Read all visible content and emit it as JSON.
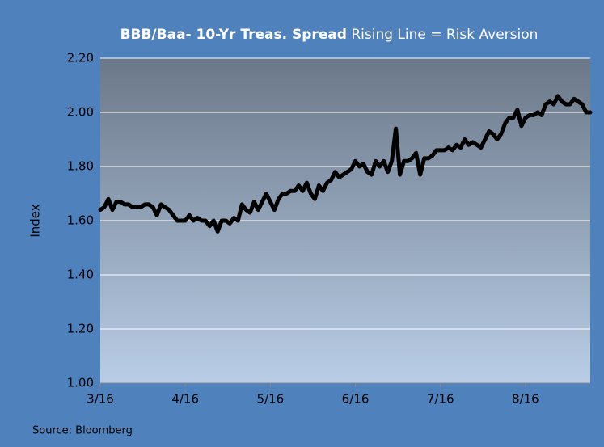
{
  "chart_data": {
    "type": "line",
    "title": "BBB/Baa- 10-Yr Treas. Spread",
    "subtitle": "Rising Line = Risk Aversion",
    "y_label": "Index",
    "source": "Source: Bloomberg",
    "categories": [
      "3/16",
      null,
      null,
      null,
      null,
      null,
      null,
      null,
      null,
      null,
      null,
      null,
      null,
      null,
      null,
      null,
      null,
      null,
      null,
      null,
      null,
      "4/16",
      null,
      null,
      null,
      null,
      null,
      null,
      null,
      null,
      null,
      null,
      null,
      null,
      null,
      null,
      null,
      null,
      null,
      null,
      null,
      null,
      "5/16",
      null,
      null,
      null,
      null,
      null,
      null,
      null,
      null,
      null,
      null,
      null,
      null,
      null,
      null,
      null,
      null,
      null,
      null,
      null,
      null,
      "6/16",
      null,
      null,
      null,
      null,
      null,
      null,
      null,
      null,
      null,
      null,
      null,
      null,
      null,
      null,
      null,
      null,
      null,
      null,
      null,
      null,
      "7/16",
      null,
      null,
      null,
      null,
      null,
      null,
      null,
      null,
      null,
      null,
      null,
      null,
      null,
      null,
      null,
      null,
      null,
      null,
      null,
      null,
      "8/16",
      null,
      null,
      null,
      null,
      null,
      null,
      null,
      null,
      null,
      null,
      null,
      null,
      null,
      null,
      null,
      null
    ],
    "series": [
      {
        "color": "#000000",
        "values": [
          1.64,
          1.65,
          1.68,
          1.64,
          1.67,
          1.67,
          1.66,
          1.66,
          1.65,
          1.65,
          1.65,
          1.66,
          1.66,
          1.65,
          1.62,
          1.66,
          1.65,
          1.64,
          1.62,
          1.6,
          1.6,
          1.6,
          1.62,
          1.6,
          1.61,
          1.6,
          1.6,
          1.58,
          1.6,
          1.56,
          1.6,
          1.6,
          1.59,
          1.61,
          1.6,
          1.66,
          1.64,
          1.63,
          1.67,
          1.64,
          1.67,
          1.7,
          1.67,
          1.64,
          1.68,
          1.7,
          1.7,
          1.71,
          1.71,
          1.73,
          1.71,
          1.74,
          1.7,
          1.68,
          1.73,
          1.71,
          1.74,
          1.75,
          1.78,
          1.76,
          1.77,
          1.78,
          1.79,
          1.82,
          1.8,
          1.81,
          1.78,
          1.77,
          1.82,
          1.8,
          1.82,
          1.78,
          1.82,
          1.94,
          1.77,
          1.82,
          1.82,
          1.83,
          1.85,
          1.77,
          1.83,
          1.83,
          1.84,
          1.86,
          1.86,
          1.86,
          1.87,
          1.86,
          1.88,
          1.87,
          1.9,
          1.88,
          1.89,
          1.88,
          1.87,
          1.9,
          1.93,
          1.92,
          1.9,
          1.92,
          1.96,
          1.98,
          1.98,
          2.01,
          1.95,
          1.98,
          1.99,
          1.99,
          2.0,
          1.99,
          2.03,
          2.04,
          2.03,
          2.06,
          2.04,
          2.03,
          2.03,
          2.05,
          2.04,
          2.03,
          2.0,
          2.0
        ]
      }
    ],
    "ylim": [
      1.0,
      2.2
    ],
    "yticks": [
      {
        "value": 1.0,
        "label": "1.00"
      },
      {
        "value": 1.2,
        "label": "1.20"
      },
      {
        "value": 1.4,
        "label": "1.40"
      },
      {
        "value": 1.6,
        "label": "1.60"
      },
      {
        "value": 1.8,
        "label": "1.80"
      },
      {
        "value": 2.0,
        "label": "2.00"
      },
      {
        "value": 2.2,
        "label": "2.20"
      }
    ],
    "grid": true
  }
}
